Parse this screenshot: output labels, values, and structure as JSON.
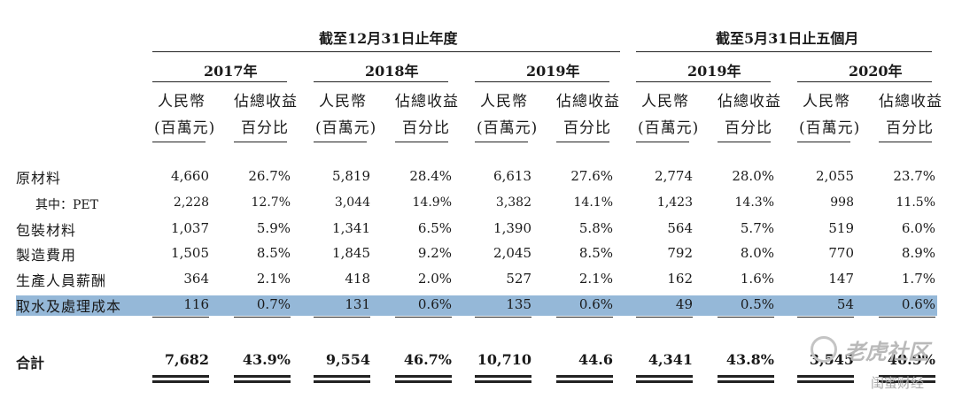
{
  "headers": {
    "group1": "截至12月31日止年度",
    "group2": "截至5月31日止五個月",
    "years": [
      "2017年",
      "2018年",
      "2019年",
      "2019年",
      "2020年"
    ],
    "col_rmb_line1": "人民幣",
    "col_rmb_line2": "(百萬元)",
    "col_pct_line1": "佔總收益",
    "col_pct_line2": "百分比"
  },
  "rows": [
    {
      "label": "原材料",
      "values": [
        "4,660",
        "26.7%",
        "5,819",
        "28.4%",
        "6,613",
        "27.6%",
        "2,774",
        "28.0%",
        "2,055",
        "23.7%"
      ]
    },
    {
      "label": "其中：PET",
      "values": [
        "2,228",
        "12.7%",
        "3,044",
        "14.9%",
        "3,382",
        "14.1%",
        "1,423",
        "14.3%",
        "998",
        "11.5%"
      ]
    },
    {
      "label": "包裝材料",
      "values": [
        "1,037",
        "5.9%",
        "1,341",
        "6.5%",
        "1,390",
        "5.8%",
        "564",
        "5.7%",
        "519",
        "6.0%"
      ]
    },
    {
      "label": "製造費用",
      "values": [
        "1,505",
        "8.5%",
        "1,845",
        "9.2%",
        "2,045",
        "8.5%",
        "792",
        "8.0%",
        "770",
        "8.9%"
      ]
    },
    {
      "label": "生產人員薪酬",
      "values": [
        "364",
        "2.1%",
        "418",
        "2.0%",
        "527",
        "2.1%",
        "162",
        "1.6%",
        "147",
        "1.7%"
      ]
    },
    {
      "label": "取水及處理成本",
      "values": [
        "116",
        "0.7%",
        "131",
        "0.6%",
        "135",
        "0.6%",
        "49",
        "0.5%",
        "54",
        "0.6%"
      ]
    }
  ],
  "total": {
    "label": "合計",
    "values": [
      "7,682",
      "43.9%",
      "9,554",
      "46.7%",
      "10,710",
      "44.6",
      "4,341",
      "43.8%",
      "3,545",
      "40.9%"
    ]
  },
  "highlight_color": "#8fb4d6",
  "watermark": {
    "main": "老虎社区",
    "sub": "闺蜜财经"
  }
}
